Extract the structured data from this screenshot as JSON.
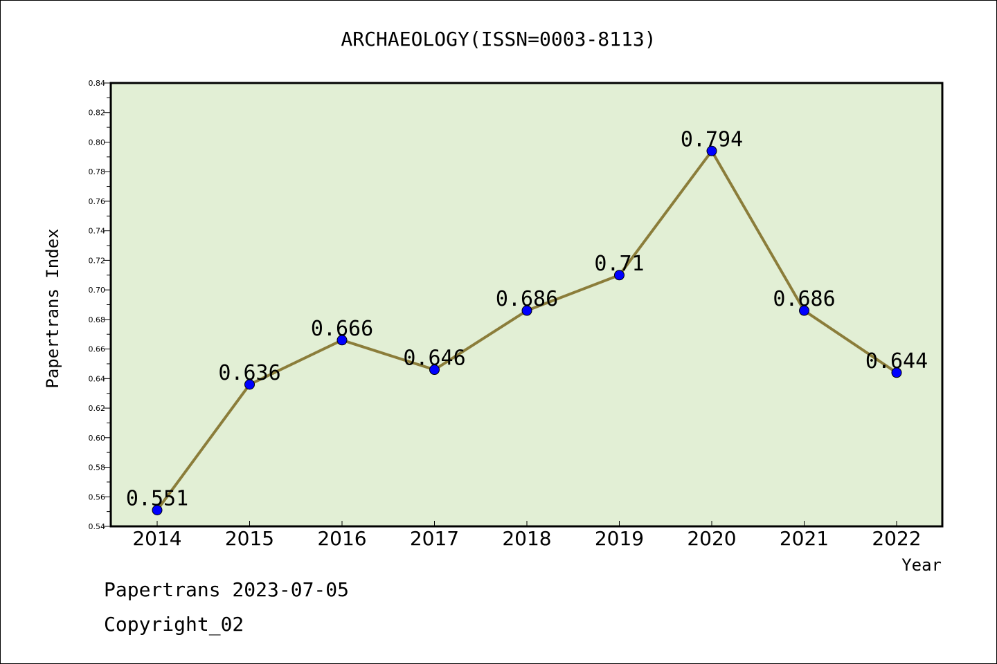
{
  "chart_data": {
    "type": "line",
    "title": "ARCHAEOLOGY(ISSN=0003-8113)",
    "xlabel": "Year",
    "ylabel": "Papertrans Index",
    "categories": [
      "2014",
      "2015",
      "2016",
      "2017",
      "2018",
      "2019",
      "2020",
      "2021",
      "2022"
    ],
    "series": [
      {
        "values": [
          0.551,
          0.636,
          0.666,
          0.646,
          0.686,
          0.71,
          0.794,
          0.686,
          0.644
        ],
        "labels": [
          "0.551",
          "0.636",
          "0.666",
          "0.646",
          "0.686",
          "0.71",
          "0.794",
          "0.686",
          "0.644"
        ]
      }
    ],
    "ylim": [
      0.54,
      0.84
    ],
    "yticks": [
      "0.54",
      "0.56",
      "0.58",
      "0.60",
      "0.62",
      "0.64",
      "0.66",
      "0.68",
      "0.70",
      "0.72",
      "0.74",
      "0.76",
      "0.78",
      "0.80",
      "0.82",
      "0.84"
    ],
    "grid": false,
    "legend": "none",
    "colors": {
      "plot_background": "#e2efd5",
      "line": "#8b7d3a",
      "marker": "#0000ff"
    }
  },
  "footer": {
    "line1": "Papertrans 2023-07-05",
    "line2": "Copyright_02"
  }
}
